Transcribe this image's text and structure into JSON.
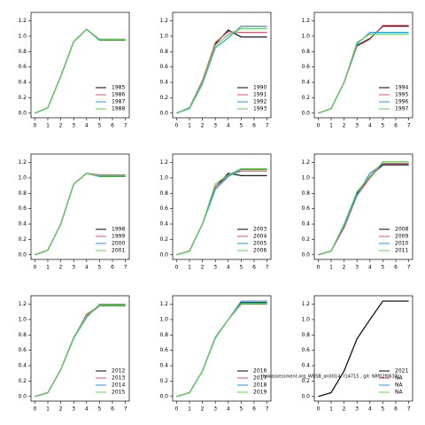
{
  "chart_data": [
    {
      "type": "line",
      "x": [
        0,
        1,
        2,
        3,
        4,
        5,
        6,
        7
      ],
      "xlim": [
        -0.3,
        7.3
      ],
      "xticks": [
        0,
        1,
        2,
        3,
        4,
        5,
        6,
        7
      ],
      "ylim": [
        -0.06,
        1.31
      ],
      "yticks": [
        {
          "value": 0,
          "label": "0.0"
        },
        0.2,
        0.4,
        0.6,
        0.8,
        {
          "value": 1,
          "label": "1.0"
        },
        1.2
      ],
      "series": [
        {
          "name": "1985",
          "color": "#000000",
          "values": [
            0,
            0.07,
            0.48,
            0.93,
            1.09,
            0.95,
            0.95,
            0.95
          ]
        },
        {
          "name": "1986",
          "color": "#df536b",
          "values": [
            0,
            0.07,
            0.48,
            0.93,
            1.09,
            0.96,
            0.96,
            0.96
          ]
        },
        {
          "name": "1987",
          "color": "#2297e6",
          "values": [
            0,
            0.07,
            0.48,
            0.93,
            1.09,
            0.95,
            0.95,
            0.95
          ]
        },
        {
          "name": "1988",
          "color": "#61d04f",
          "values": [
            0,
            0.07,
            0.48,
            0.93,
            1.09,
            0.96,
            0.96,
            0.96
          ]
        }
      ]
    },
    {
      "type": "line",
      "x": [
        0,
        1,
        2,
        3,
        4,
        5,
        6,
        7
      ],
      "xlim": [
        -0.3,
        7.3
      ],
      "xticks": [
        0,
        1,
        2,
        3,
        4,
        5,
        6,
        7
      ],
      "ylim": [
        -0.06,
        1.31
      ],
      "yticks": [
        {
          "value": 0,
          "label": "0.0"
        },
        0.2,
        0.4,
        0.6,
        0.8,
        {
          "value": 1,
          "label": "1.0"
        },
        1.2
      ],
      "series": [
        {
          "name": "1990",
          "color": "#000000",
          "values": [
            0,
            0.07,
            0.42,
            0.9,
            1.08,
            0.99,
            0.99,
            0.99
          ]
        },
        {
          "name": "1991",
          "color": "#df536b",
          "values": [
            0,
            0.07,
            0.42,
            0.92,
            1.06,
            1.05,
            1.05,
            1.05
          ]
        },
        {
          "name": "1992",
          "color": "#2297e6",
          "values": [
            0,
            0.06,
            0.38,
            0.85,
            0.98,
            1.13,
            1.13,
            1.13
          ]
        },
        {
          "name": "1993",
          "color": "#61d04f",
          "values": [
            0,
            0.07,
            0.4,
            0.88,
            1.02,
            1.1,
            1.1,
            1.1
          ]
        }
      ]
    },
    {
      "type": "line",
      "x": [
        0,
        1,
        2,
        3,
        4,
        5,
        6,
        7
      ],
      "xlim": [
        -0.3,
        7.3
      ],
      "xticks": [
        0,
        1,
        2,
        3,
        4,
        5,
        6,
        7
      ],
      "ylim": [
        -0.06,
        1.31
      ],
      "yticks": [
        {
          "value": 0,
          "label": "0.0"
        },
        0.2,
        0.4,
        0.6,
        0.8,
        {
          "value": 1,
          "label": "1.0"
        },
        1.2
      ],
      "series": [
        {
          "name": "1994",
          "color": "#000000",
          "values": [
            0,
            0.06,
            0.4,
            0.88,
            0.97,
            1.13,
            1.13,
            1.13
          ]
        },
        {
          "name": "1995",
          "color": "#df536b",
          "values": [
            0,
            0.06,
            0.4,
            0.87,
            0.96,
            1.14,
            1.14,
            1.14
          ]
        },
        {
          "name": "1996",
          "color": "#2297e6",
          "values": [
            0,
            0.06,
            0.4,
            0.9,
            1.05,
            1.05,
            1.05,
            1.05
          ]
        },
        {
          "name": "1997",
          "color": "#61d04f",
          "values": [
            0,
            0.06,
            0.4,
            0.92,
            1.03,
            1.03,
            1.03,
            1.03
          ]
        }
      ]
    },
    {
      "type": "line",
      "x": [
        0,
        1,
        2,
        3,
        4,
        5,
        6,
        7
      ],
      "xlim": [
        -0.3,
        7.3
      ],
      "xticks": [
        0,
        1,
        2,
        3,
        4,
        5,
        6,
        7
      ],
      "ylim": [
        -0.06,
        1.31
      ],
      "yticks": [
        {
          "value": 0,
          "label": "0.0"
        },
        0.2,
        0.4,
        0.6,
        0.8,
        {
          "value": 1,
          "label": "1.0"
        },
        1.2
      ],
      "series": [
        {
          "name": "1998",
          "color": "#000000",
          "values": [
            0,
            0.06,
            0.4,
            0.92,
            1.06,
            1.02,
            1.02,
            1.02
          ]
        },
        {
          "name": "1999",
          "color": "#df536b",
          "values": [
            0,
            0.06,
            0.4,
            0.92,
            1.06,
            1.04,
            1.04,
            1.04
          ]
        },
        {
          "name": "2000",
          "color": "#2297e6",
          "values": [
            0,
            0.06,
            0.4,
            0.92,
            1.06,
            1.02,
            1.02,
            1.02
          ]
        },
        {
          "name": "2001",
          "color": "#61d04f",
          "values": [
            0,
            0.06,
            0.4,
            0.92,
            1.06,
            1.03,
            1.03,
            1.03
          ]
        }
      ]
    },
    {
      "type": "line",
      "x": [
        0,
        1,
        2,
        3,
        4,
        5,
        6,
        7
      ],
      "xlim": [
        -0.3,
        7.3
      ],
      "xticks": [
        0,
        1,
        2,
        3,
        4,
        5,
        6,
        7
      ],
      "ylim": [
        -0.06,
        1.31
      ],
      "yticks": [
        {
          "value": 0,
          "label": "0.0"
        },
        0.2,
        0.4,
        0.6,
        0.8,
        {
          "value": 1,
          "label": "1.0"
        },
        1.2
      ],
      "series": [
        {
          "name": "2003",
          "color": "#000000",
          "values": [
            0,
            0.05,
            0.4,
            0.88,
            1.06,
            1.03,
            1.03,
            1.03
          ]
        },
        {
          "name": "2004",
          "color": "#df536b",
          "values": [
            0,
            0.05,
            0.4,
            0.88,
            1.03,
            1.09,
            1.09,
            1.09
          ]
        },
        {
          "name": "2005",
          "color": "#2297e6",
          "values": [
            0,
            0.05,
            0.4,
            0.85,
            1.02,
            1.11,
            1.11,
            1.11
          ]
        },
        {
          "name": "2006",
          "color": "#61d04f",
          "values": [
            0,
            0.05,
            0.4,
            0.92,
            1.04,
            1.12,
            1.12,
            1.12
          ]
        }
      ]
    },
    {
      "type": "line",
      "x": [
        0,
        1,
        2,
        3,
        4,
        5,
        6,
        7
      ],
      "xlim": [
        -0.3,
        7.3
      ],
      "xticks": [
        0,
        1,
        2,
        3,
        4,
        5,
        6,
        7
      ],
      "ylim": [
        -0.06,
        1.31
      ],
      "yticks": [
        {
          "value": 0,
          "label": "0.0"
        },
        0.2,
        0.4,
        0.6,
        0.8,
        {
          "value": 1,
          "label": "1.0"
        },
        1.2
      ],
      "series": [
        {
          "name": "2008",
          "color": "#000000",
          "values": [
            0,
            0.05,
            0.38,
            0.8,
            1.02,
            1.17,
            1.17,
            1.17
          ]
        },
        {
          "name": "2009",
          "color": "#df536b",
          "values": [
            0,
            0.05,
            0.35,
            0.77,
            1.0,
            1.19,
            1.19,
            1.19
          ]
        },
        {
          "name": "2010",
          "color": "#2297e6",
          "values": [
            0,
            0.05,
            0.38,
            0.78,
            1.06,
            1.18,
            1.18,
            1.18
          ]
        },
        {
          "name": "2011",
          "color": "#61d04f",
          "values": [
            0,
            0.05,
            0.4,
            0.82,
            1.02,
            1.21,
            1.21,
            1.21
          ]
        }
      ]
    },
    {
      "type": "line",
      "x": [
        0,
        1,
        2,
        3,
        4,
        5,
        6,
        7
      ],
      "xlim": [
        -0.3,
        7.3
      ],
      "xticks": [
        0,
        1,
        2,
        3,
        4,
        5,
        6,
        7
      ],
      "ylim": [
        -0.06,
        1.31
      ],
      "yticks": [
        {
          "value": 0,
          "label": "0.0"
        },
        0.2,
        0.4,
        0.6,
        0.8,
        {
          "value": 1,
          "label": "1.0"
        },
        1.2
      ],
      "series": [
        {
          "name": "2012",
          "color": "#000000",
          "values": [
            0,
            0.05,
            0.35,
            0.76,
            1.05,
            1.18,
            1.18,
            1.18
          ]
        },
        {
          "name": "2013",
          "color": "#df536b",
          "values": [
            0,
            0.05,
            0.35,
            0.76,
            1.07,
            1.18,
            1.18,
            1.18
          ]
        },
        {
          "name": "2014",
          "color": "#2297e6",
          "values": [
            0,
            0.05,
            0.35,
            0.76,
            1.03,
            1.2,
            1.2,
            1.2
          ]
        },
        {
          "name": "2015",
          "color": "#61d04f",
          "values": [
            0,
            0.05,
            0.35,
            0.77,
            1.05,
            1.19,
            1.19,
            1.19
          ]
        }
      ]
    },
    {
      "type": "line",
      "x": [
        0,
        1,
        2,
        3,
        4,
        5,
        6,
        7
      ],
      "xlim": [
        -0.3,
        7.3
      ],
      "xticks": [
        0,
        1,
        2,
        3,
        4,
        5,
        6,
        7
      ],
      "ylim": [
        -0.06,
        1.31
      ],
      "yticks": [
        {
          "value": 0,
          "label": "0.0"
        },
        0.2,
        0.4,
        0.6,
        0.8,
        {
          "value": 1,
          "label": "1.0"
        },
        1.2
      ],
      "series": [
        {
          "name": "2016",
          "color": "#000000",
          "values": [
            0,
            0.05,
            0.33,
            0.77,
            1.0,
            1.22,
            1.22,
            1.22
          ]
        },
        {
          "name": "2017",
          "color": "#df536b",
          "values": [
            0,
            0.05,
            0.33,
            0.77,
            1.0,
            1.2,
            1.2,
            1.2
          ]
        },
        {
          "name": "2018",
          "color": "#2297e6",
          "values": [
            0,
            0.05,
            0.33,
            0.76,
            1.0,
            1.24,
            1.24,
            1.24
          ]
        },
        {
          "name": "2019",
          "color": "#61d04f",
          "values": [
            0,
            0.05,
            0.33,
            0.77,
            1.0,
            1.21,
            1.21,
            1.21
          ]
        }
      ]
    },
    {
      "type": "line",
      "x": [
        0,
        1,
        2,
        3,
        4,
        5,
        6,
        7
      ],
      "xlim": [
        -0.3,
        7.3
      ],
      "xticks": [
        0,
        1,
        2,
        3,
        4,
        5,
        6,
        7
      ],
      "ylim": [
        -0.06,
        1.31
      ],
      "yticks": [
        {
          "value": 0,
          "label": "0.0"
        },
        0.2,
        0.4,
        0.6,
        0.8,
        {
          "value": 1,
          "label": "1.0"
        },
        1.2
      ],
      "annotation": "tbakassessment.org_WBSB_an0014, r14715 , git: 68f02f0637c",
      "series": [
        {
          "name": "2021",
          "color": "#000000",
          "values": [
            0,
            0.05,
            0.33,
            0.75,
            1.0,
            1.24,
            1.24,
            1.24
          ]
        },
        {
          "name": "NA",
          "color": "#df536b",
          "values": [
            null,
            null,
            null,
            null,
            null,
            null,
            null,
            null
          ]
        },
        {
          "name": "NA",
          "color": "#2297e6",
          "values": [
            null,
            null,
            null,
            null,
            null,
            null,
            null,
            null
          ]
        },
        {
          "name": "NA",
          "color": "#61d04f",
          "values": [
            null,
            null,
            null,
            null,
            null,
            null,
            null,
            null
          ]
        }
      ]
    }
  ]
}
